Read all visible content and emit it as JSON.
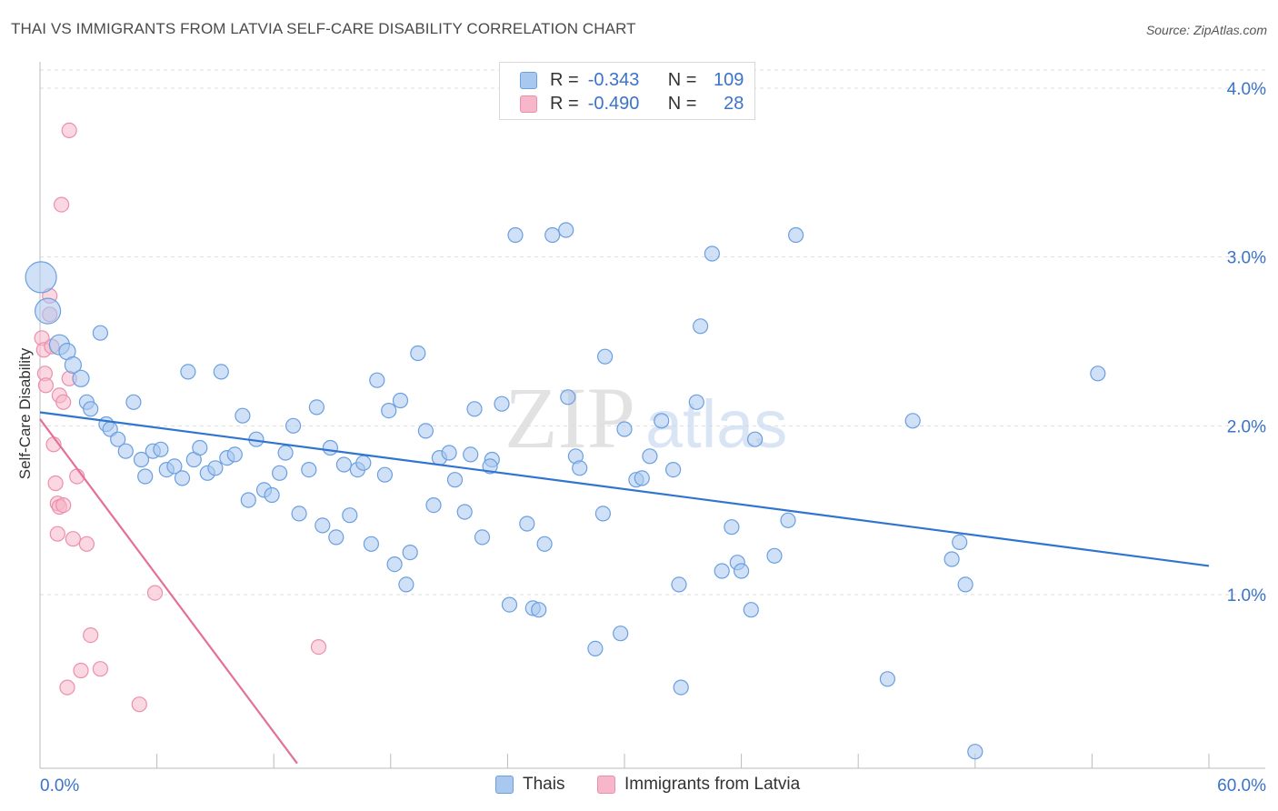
{
  "title": "THAI VS IMMIGRANTS FROM LATVIA SELF-CARE DISABILITY CORRELATION CHART",
  "source": "Source: ZipAtlas.com",
  "watermark": {
    "zip": "ZIP",
    "atlas": "atlas"
  },
  "legend": {
    "rows": [
      {
        "r_label": "R =",
        "r_value": "-0.343",
        "n_label": "N =",
        "n_value": "109",
        "color": "#a9c8f0"
      },
      {
        "r_label": "R =",
        "r_value": "-0.490",
        "n_label": "N =",
        "n_value": "28",
        "color": "#f7b6c9"
      }
    ]
  },
  "bottom_legend": {
    "thai": "Thais",
    "latvia": "Immigrants from Latvia"
  },
  "colors": {
    "thai_fill": "#a9c8f0",
    "thai_stroke": "#6a9fe0",
    "thai_line": "#2f74d0",
    "latvia_fill": "#f7b6c9",
    "latvia_stroke": "#ec8fae",
    "latvia_line": "#e3719a",
    "tick_label": "#3a73c8"
  },
  "chart_data": {
    "type": "scatter",
    "title": "THAI VS IMMIGRANTS FROM LATVIA SELF-CARE DISABILITY CORRELATION CHART",
    "xlabel": "",
    "ylabel": "Self-Care Disability",
    "xlim": [
      0,
      60
    ],
    "ylim": [
      0,
      4.2
    ],
    "x_tick_labels": [
      "0.0%",
      "60.0%"
    ],
    "y_ticks": [
      1.0,
      2.0,
      3.0,
      4.0
    ],
    "y_tick_labels": [
      "1.0%",
      "2.0%",
      "3.0%",
      "4.0%"
    ],
    "grid": true,
    "legend_position": "top-center",
    "series": [
      {
        "name": "Thais",
        "trend": {
          "x": [
            0,
            60
          ],
          "y": [
            2.08,
            1.17
          ]
        },
        "points": [
          [
            0.05,
            2.88,
            34
          ],
          [
            0.4,
            2.68,
            28
          ],
          [
            1.0,
            2.48,
            22
          ],
          [
            1.4,
            2.44,
            18
          ],
          [
            1.7,
            2.36,
            18
          ],
          [
            2.1,
            2.28,
            18
          ],
          [
            2.4,
            2.14,
            16
          ],
          [
            2.6,
            2.1,
            16
          ],
          [
            3.1,
            2.55,
            16
          ],
          [
            3.4,
            2.01,
            16
          ],
          [
            3.6,
            1.98,
            16
          ],
          [
            4.0,
            1.92,
            16
          ],
          [
            4.4,
            1.85,
            16
          ],
          [
            4.8,
            2.14,
            16
          ],
          [
            5.2,
            1.8,
            16
          ],
          [
            5.4,
            1.7,
            16
          ],
          [
            5.8,
            1.85,
            16
          ],
          [
            6.2,
            1.86,
            16
          ],
          [
            6.5,
            1.74,
            16
          ],
          [
            6.9,
            1.76,
            16
          ],
          [
            7.3,
            1.69,
            16
          ],
          [
            7.6,
            2.32,
            16
          ],
          [
            7.9,
            1.8,
            16
          ],
          [
            8.2,
            1.87,
            16
          ],
          [
            8.6,
            1.72,
            16
          ],
          [
            9.0,
            1.75,
            16
          ],
          [
            9.3,
            2.32,
            16
          ],
          [
            9.6,
            1.81,
            16
          ],
          [
            10.0,
            1.83,
            16
          ],
          [
            10.4,
            2.06,
            16
          ],
          [
            10.7,
            1.56,
            16
          ],
          [
            11.1,
            1.92,
            16
          ],
          [
            11.5,
            1.62,
            16
          ],
          [
            11.9,
            1.59,
            16
          ],
          [
            12.3,
            1.72,
            16
          ],
          [
            12.6,
            1.84,
            16
          ],
          [
            13.0,
            2.0,
            16
          ],
          [
            13.3,
            1.48,
            16
          ],
          [
            13.8,
            1.74,
            16
          ],
          [
            14.2,
            2.11,
            16
          ],
          [
            14.5,
            1.41,
            16
          ],
          [
            14.9,
            1.87,
            16
          ],
          [
            15.2,
            1.34,
            16
          ],
          [
            15.6,
            1.77,
            16
          ],
          [
            15.9,
            1.47,
            16
          ],
          [
            16.3,
            1.74,
            16
          ],
          [
            16.6,
            1.78,
            16
          ],
          [
            17.0,
            1.3,
            16
          ],
          [
            17.3,
            2.27,
            16
          ],
          [
            17.7,
            1.71,
            16
          ],
          [
            17.9,
            2.09,
            16
          ],
          [
            18.2,
            1.18,
            16
          ],
          [
            18.5,
            2.15,
            16
          ],
          [
            18.8,
            1.06,
            16
          ],
          [
            19.0,
            1.25,
            16
          ],
          [
            19.4,
            2.43,
            16
          ],
          [
            19.8,
            1.97,
            16
          ],
          [
            20.2,
            1.53,
            16
          ],
          [
            20.5,
            1.81,
            16
          ],
          [
            21.0,
            1.84,
            16
          ],
          [
            21.3,
            1.68,
            16
          ],
          [
            21.8,
            1.49,
            16
          ],
          [
            22.1,
            1.83,
            16
          ],
          [
            22.3,
            2.1,
            16
          ],
          [
            22.7,
            1.34,
            16
          ],
          [
            23.2,
            1.8,
            16
          ],
          [
            23.1,
            1.76,
            16
          ],
          [
            23.7,
            2.13,
            16
          ],
          [
            24.1,
            0.94,
            16
          ],
          [
            24.4,
            3.13,
            16
          ],
          [
            25.0,
            1.42,
            16
          ],
          [
            25.3,
            0.92,
            16
          ],
          [
            25.6,
            0.91,
            16
          ],
          [
            25.9,
            1.3,
            16
          ],
          [
            26.3,
            3.13,
            16
          ],
          [
            27.0,
            3.16,
            16
          ],
          [
            27.1,
            2.17,
            16
          ],
          [
            27.5,
            1.82,
            16
          ],
          [
            27.7,
            1.75,
            16
          ],
          [
            28.5,
            0.68,
            16
          ],
          [
            28.9,
            1.48,
            16
          ],
          [
            29.0,
            2.41,
            16
          ],
          [
            29.8,
            0.77,
            16
          ],
          [
            30.0,
            1.98,
            16
          ],
          [
            30.6,
            1.68,
            16
          ],
          [
            30.9,
            1.69,
            16
          ],
          [
            31.3,
            1.82,
            16
          ],
          [
            31.9,
            2.03,
            16
          ],
          [
            32.5,
            1.74,
            16
          ],
          [
            32.8,
            1.06,
            16
          ],
          [
            32.9,
            0.45,
            16
          ],
          [
            33.7,
            2.14,
            16
          ],
          [
            33.9,
            2.59,
            16
          ],
          [
            34.5,
            3.02,
            16
          ],
          [
            35.0,
            1.14,
            16
          ],
          [
            35.5,
            1.4,
            16
          ],
          [
            35.8,
            1.19,
            16
          ],
          [
            36.0,
            1.14,
            16
          ],
          [
            36.5,
            0.91,
            16
          ],
          [
            36.7,
            1.92,
            16
          ],
          [
            37.7,
            1.23,
            16
          ],
          [
            38.4,
            1.44,
            16
          ],
          [
            38.8,
            3.13,
            16
          ],
          [
            43.5,
            0.5,
            16
          ],
          [
            44.8,
            2.03,
            16
          ],
          [
            46.8,
            1.21,
            16
          ],
          [
            47.2,
            1.31,
            16
          ],
          [
            47.5,
            1.06,
            16
          ],
          [
            48.0,
            0.07,
            16
          ],
          [
            54.3,
            2.31,
            16
          ]
        ]
      },
      {
        "name": "Immigrants from Latvia",
        "trend": {
          "x": [
            0,
            13.2
          ],
          "y": [
            2.04,
            0.0
          ]
        },
        "points": [
          [
            0.1,
            2.52,
            16
          ],
          [
            0.2,
            2.45,
            16
          ],
          [
            0.25,
            2.31,
            16
          ],
          [
            0.3,
            2.24,
            16
          ],
          [
            0.5,
            2.77,
            16
          ],
          [
            0.5,
            2.66,
            16
          ],
          [
            0.6,
            2.47,
            16
          ],
          [
            0.7,
            1.89,
            16
          ],
          [
            0.8,
            1.66,
            16
          ],
          [
            0.9,
            1.36,
            16
          ],
          [
            0.9,
            1.54,
            16
          ],
          [
            1.0,
            1.52,
            16
          ],
          [
            1.0,
            2.18,
            16
          ],
          [
            1.1,
            3.31,
            16
          ],
          [
            1.2,
            1.53,
            16
          ],
          [
            1.2,
            2.14,
            16
          ],
          [
            1.4,
            0.45,
            16
          ],
          [
            1.5,
            2.28,
            16
          ],
          [
            1.5,
            3.75,
            16
          ],
          [
            1.7,
            1.33,
            16
          ],
          [
            1.9,
            1.7,
            16
          ],
          [
            2.1,
            0.55,
            16
          ],
          [
            2.4,
            1.3,
            16
          ],
          [
            2.6,
            0.76,
            16
          ],
          [
            3.1,
            0.56,
            16
          ],
          [
            5.1,
            0.35,
            16
          ],
          [
            5.9,
            1.01,
            16
          ],
          [
            14.3,
            0.69,
            16
          ]
        ]
      }
    ]
  }
}
